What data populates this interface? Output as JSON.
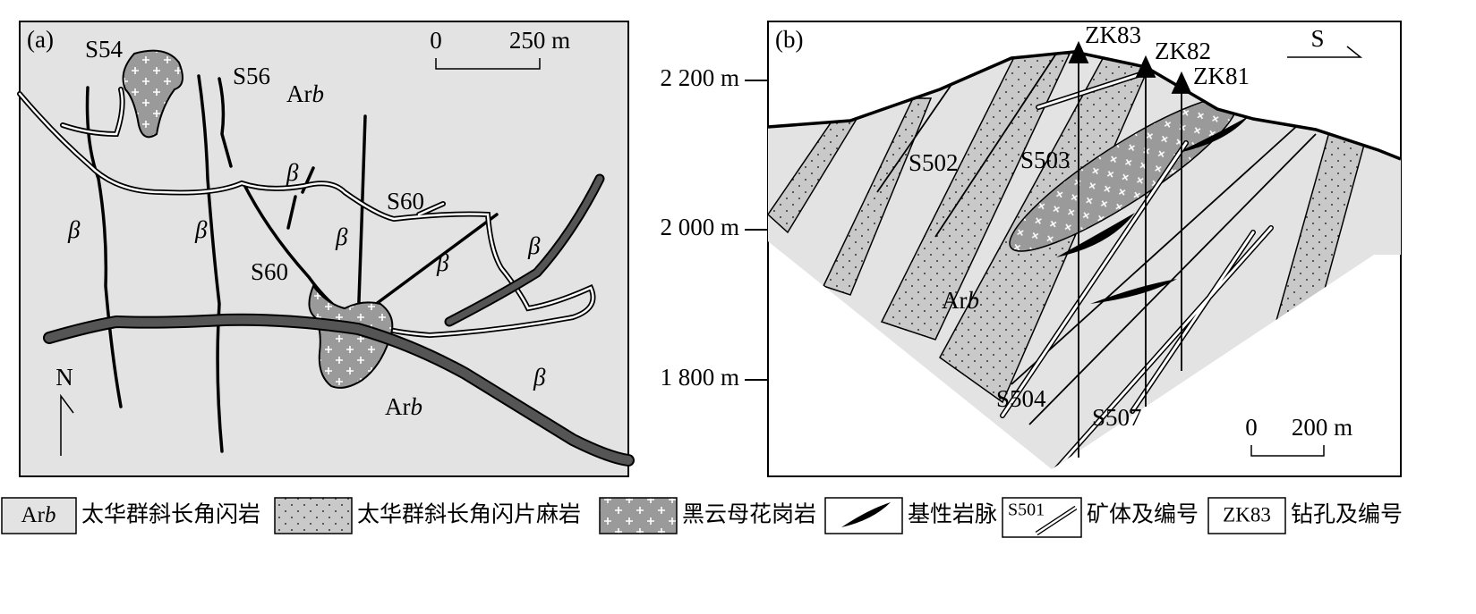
{
  "panel_a": {
    "label": "(a)",
    "scale_bar": {
      "start": "0",
      "end": "250 m"
    },
    "north": "N",
    "veins": [
      "S54",
      "S56",
      "S60",
      "S60"
    ],
    "rock_code": [
      {
        "roman": "Ar",
        "italic": "b"
      },
      {
        "roman": "Ar",
        "italic": "b"
      }
    ],
    "dyke_symbols": [
      "β",
      "β",
      "β",
      "β",
      "β",
      "β",
      "β"
    ]
  },
  "panel_b": {
    "label": "(b)",
    "direction": "S",
    "elevations": [
      "2 200 m",
      "2 000 m",
      "1 800 m"
    ],
    "drill_holes": [
      "ZK83",
      "ZK82",
      "ZK81"
    ],
    "veins": [
      "S502",
      "S503",
      "S504",
      "S507"
    ],
    "rock_code": {
      "roman": "Ar",
      "italic": "b"
    },
    "scale_bar": {
      "start": "0",
      "end": "200 m"
    }
  },
  "legend": [
    {
      "symbol": {
        "roman": "Ar",
        "italic": "b"
      },
      "label": "太华群斜长角闪岩"
    },
    {
      "label": "太华群斜长角闪片麻岩"
    },
    {
      "label": "黑云母花岗岩"
    },
    {
      "label": "基性岩脉"
    },
    {
      "symbol": "S501",
      "label": "矿体及编号"
    },
    {
      "symbol": "ZK83",
      "label": "钻孔及编号"
    }
  ]
}
